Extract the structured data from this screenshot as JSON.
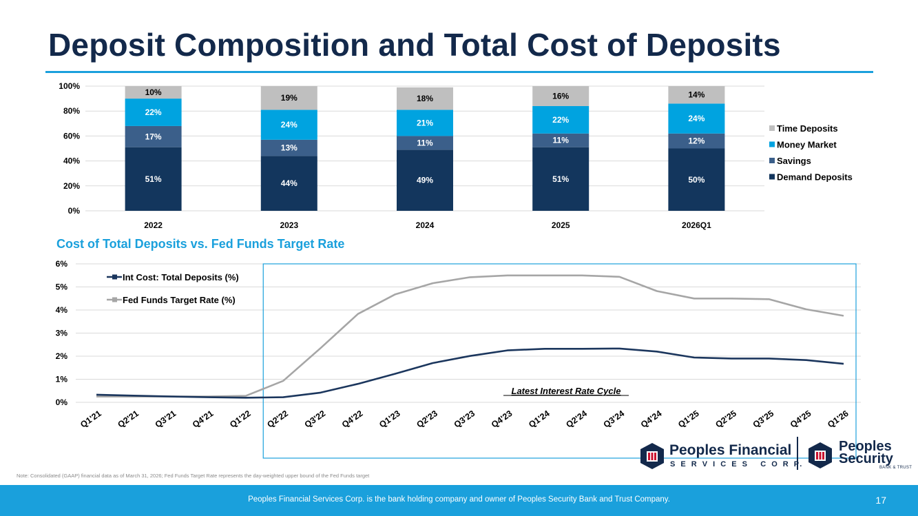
{
  "title": "Deposit Composition and Total Cost of Deposits",
  "subtitle": "Cost of Total Deposits vs. Fed Funds Target Rate",
  "note": "Note: Consolidated (GAAP) financial data as of March 31, 2026; Fed Funds Target Rate represents the day-weighted upper bound of the Fed Funds target",
  "footer": "Peoples Financial Services Corp. is the bank holding company and owner of Peoples Security Bank and Trust Company.",
  "page_number": "17",
  "logos": {
    "pfs_line1": "Peoples Financial",
    "pfs_line2": "S E R V I C E S   C O R P.",
    "psb_line1": "Peoples",
    "psb_line2": "Security",
    "psb_line3": "BANK & TRUST"
  },
  "colors": {
    "time": "#bfbfbf",
    "money": "#00a3e0",
    "savings": "#3b5f8a",
    "demand": "#13365d",
    "int_cost": "#1b365d",
    "fed": "#a6a6a6",
    "accent": "#1aa0dc",
    "navy": "#13294b"
  },
  "chart_data": [
    {
      "type": "bar",
      "stacked": true,
      "categories": [
        "2022",
        "2023",
        "2024",
        "2025",
        "2026Q1"
      ],
      "series": [
        {
          "name": "Demand Deposits",
          "values": [
            51,
            44,
            49,
            51,
            50
          ],
          "labels": [
            "51%",
            "44%",
            "49%",
            "51%",
            "50%"
          ]
        },
        {
          "name": "Savings",
          "values": [
            17,
            13,
            11,
            11,
            12
          ],
          "labels": [
            "17%",
            "13%",
            "11%",
            "11%",
            "12%"
          ]
        },
        {
          "name": "Money Market",
          "values": [
            22,
            24,
            21,
            22,
            24
          ],
          "labels": [
            "22%",
            "24%",
            "21%",
            "22%",
            "24%"
          ]
        },
        {
          "name": "Time Deposits",
          "values": [
            10,
            19,
            18,
            16,
            14
          ],
          "labels": [
            "10%",
            "19%",
            "18%",
            "16%",
            "14%"
          ]
        }
      ],
      "legend_order": [
        "Time Deposits",
        "Money Market",
        "Savings",
        "Demand Deposits"
      ],
      "ylim": [
        0,
        100
      ],
      "yticks": [
        0,
        20,
        40,
        60,
        80,
        100
      ],
      "ytick_labels": [
        "0%",
        "20%",
        "40%",
        "60%",
        "80%",
        "100%"
      ],
      "legend": "right",
      "grid": true
    },
    {
      "type": "line",
      "title": "Cost of Total Deposits vs. Fed Funds Target Rate",
      "x": [
        "Q1'21",
        "Q2'21",
        "Q3'21",
        "Q4'21",
        "Q1'22",
        "Q2'22",
        "Q3'22",
        "Q4'22",
        "Q1'23",
        "Q2'23",
        "Q3'23",
        "Q4'23",
        "Q1'24",
        "Q2'24",
        "Q3'24",
        "Q4'24",
        "Q1'25",
        "Q2'25",
        "Q3'25",
        "Q4'25",
        "Q1'26"
      ],
      "series": [
        {
          "name": "Int Cost: Total Deposits (%)",
          "values": [
            0.33,
            0.29,
            0.25,
            0.22,
            0.2,
            0.22,
            0.42,
            0.8,
            1.24,
            1.7,
            2.01,
            2.25,
            2.32,
            2.32,
            2.33,
            2.2,
            1.94,
            1.9,
            1.9,
            1.83,
            1.67
          ]
        },
        {
          "name": "Fed Funds Target Rate (%)",
          "values": [
            0.25,
            0.25,
            0.25,
            0.25,
            0.28,
            0.93,
            2.35,
            3.83,
            4.68,
            5.16,
            5.42,
            5.5,
            5.5,
            5.5,
            5.44,
            4.82,
            4.5,
            4.5,
            4.47,
            4.03,
            3.75
          ]
        }
      ],
      "ylim": [
        0,
        6
      ],
      "yticks": [
        0,
        1,
        2,
        3,
        4,
        5,
        6
      ],
      "ytick_labels": [
        "0%",
        "1%",
        "2%",
        "3%",
        "4%",
        "5%",
        "6%"
      ],
      "annotation": "Latest Interest Rate Cycle",
      "highlight_range": [
        "Q2'22",
        "Q1'26"
      ],
      "legend": "top-left",
      "grid": true
    }
  ]
}
